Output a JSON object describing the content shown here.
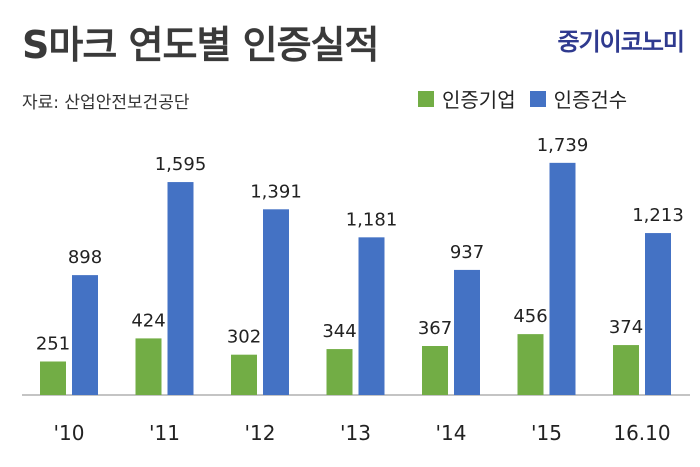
{
  "header": {
    "title": "S마크 연도별 인증실적",
    "brand": "중기이코노미",
    "source": "자료: 산업안전보건공단"
  },
  "chart_data": {
    "type": "bar",
    "categories": [
      "'10",
      "'11",
      "'12",
      "'13",
      "'14",
      "'15",
      "16.10"
    ],
    "series": [
      {
        "name": "인증기업",
        "color": "#72ad45",
        "values": [
          251,
          424,
          302,
          344,
          367,
          456,
          374
        ]
      },
      {
        "name": "인증건수",
        "color": "#4472c4",
        "values": [
          898,
          1595,
          1391,
          1181,
          937,
          1739,
          1213
        ]
      }
    ],
    "title": "S마크 연도별 인증실적",
    "xlabel": "",
    "ylabel": "",
    "ylim": [
      0,
      2000
    ],
    "grid": false,
    "legend": "top-right"
  }
}
